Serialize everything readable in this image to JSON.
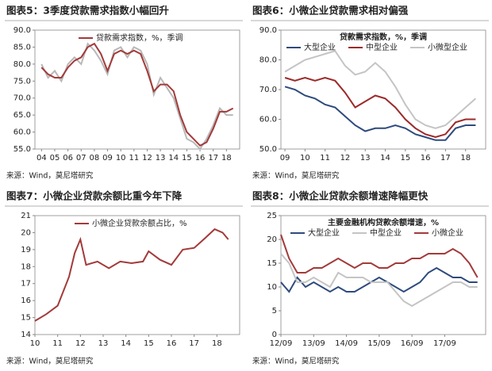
{
  "chart_data": [
    {
      "type": "line",
      "title": "图表5：3季度贷款需求指数小幅回升",
      "source": "来源：Wind，莫尼塔研究",
      "x": [
        2004,
        2004.5,
        2005,
        2005.5,
        2006,
        2006.5,
        2007,
        2007.5,
        2008,
        2008.5,
        2009,
        2009.5,
        2010,
        2010.5,
        2011,
        2011.5,
        2012,
        2012.5,
        2013,
        2013.5,
        2014,
        2014.5,
        2015,
        2015.5,
        2016,
        2016.5,
        2017,
        2017.5,
        2018,
        2018.5
      ],
      "series": [
        {
          "color": "#b8b8b8",
          "values": [
            80,
            76,
            78,
            75,
            80,
            82,
            80,
            86,
            84,
            81,
            77,
            84,
            85,
            82,
            85,
            84,
            80,
            71,
            76,
            73,
            70,
            64,
            58,
            57,
            55,
            58,
            62,
            67,
            65,
            65
          ]
        },
        {
          "name": "贷款需求指数，%，季调",
          "color": "#a33a3a",
          "values": [
            79,
            77,
            76,
            76,
            79,
            81,
            82,
            85,
            86,
            83,
            78,
            83,
            84,
            83,
            84,
            83,
            78,
            72,
            74,
            74,
            72,
            65,
            60,
            58,
            56,
            57,
            61,
            66,
            66,
            67
          ]
        }
      ],
      "xlim": [
        2003.5,
        2019
      ],
      "xticks": [
        {
          "value": 2004,
          "label": "04"
        },
        {
          "value": 2005,
          "label": "05"
        },
        {
          "value": 2006,
          "label": "06"
        },
        {
          "value": 2007,
          "label": "07"
        },
        {
          "value": 2008,
          "label": "08"
        },
        {
          "value": 2009,
          "label": "09"
        },
        {
          "value": 2010,
          "label": "10"
        },
        {
          "value": 2011,
          "label": "11"
        },
        {
          "value": 2012,
          "label": "12"
        },
        {
          "value": 2013,
          "label": "13"
        },
        {
          "value": 2014,
          "label": "14"
        },
        {
          "value": 2015,
          "label": "15"
        },
        {
          "value": 2016,
          "label": "16"
        },
        {
          "value": 2017,
          "label": "17"
        },
        {
          "value": 2018,
          "label": "18"
        }
      ],
      "ylim": [
        55,
        90
      ],
      "yticks": [
        {
          "value": 55,
          "label": "55.0"
        },
        {
          "value": 60,
          "label": "60.0"
        },
        {
          "value": 65,
          "label": "65.0"
        },
        {
          "value": 70,
          "label": "70.0"
        },
        {
          "value": 75,
          "label": "75.0"
        },
        {
          "value": 80,
          "label": "80.0"
        },
        {
          "value": 85,
          "label": "85.0"
        },
        {
          "value": 90,
          "label": "90.0"
        }
      ]
    },
    {
      "type": "line",
      "title": "图表6：小微企业贷款需求相对偏强",
      "subtitle": "贷款需求指数，%，季调",
      "source": "来源：Wind，莫尼塔研究",
      "x": [
        2009,
        2009.5,
        2010,
        2010.5,
        2011,
        2011.5,
        2012,
        2012.5,
        2013,
        2013.5,
        2014,
        2014.5,
        2015,
        2015.5,
        2016,
        2016.5,
        2017,
        2017.5,
        2018,
        2018.5
      ],
      "series": [
        {
          "name": "大型企业",
          "color": "#2e4a7d",
          "values": [
            71,
            70,
            68,
            67,
            65,
            64,
            61,
            58,
            56,
            57,
            57,
            58,
            57,
            55,
            54,
            53,
            53,
            57,
            58,
            58
          ]
        },
        {
          "name": "中型企业",
          "color": "#9c2a2a",
          "values": [
            74,
            73,
            74,
            73,
            74,
            73,
            69,
            64,
            66,
            68,
            67,
            64,
            60,
            57,
            55,
            54,
            55,
            59,
            60,
            60
          ]
        },
        {
          "name": "小微型企业",
          "color": "#c4c4c4",
          "values": [
            76,
            78,
            80,
            81,
            82,
            83,
            78,
            75,
            76,
            79,
            76,
            71,
            65,
            60,
            58,
            57,
            58,
            61,
            64,
            67
          ]
        }
      ],
      "xlim": [
        2008.8,
        2019
      ],
      "xticks": [
        {
          "value": 2009,
          "label": "09"
        },
        {
          "value": 2010,
          "label": "10"
        },
        {
          "value": 2011,
          "label": "11"
        },
        {
          "value": 2012,
          "label": "12"
        },
        {
          "value": 2013,
          "label": "13"
        },
        {
          "value": 2014,
          "label": "14"
        },
        {
          "value": 2015,
          "label": "15"
        },
        {
          "value": 2016,
          "label": "16"
        },
        {
          "value": 2017,
          "label": "17"
        },
        {
          "value": 2018,
          "label": "18"
        }
      ],
      "ylim": [
        50,
        90
      ],
      "yticks": [
        {
          "value": 50,
          "label": "50.0"
        },
        {
          "value": 60,
          "label": "60.0"
        },
        {
          "value": 70,
          "label": "70.0"
        },
        {
          "value": 80,
          "label": "80.0"
        },
        {
          "value": 90,
          "label": "90.0"
        }
      ]
    },
    {
      "type": "line",
      "title": "图表7：小微企业贷款余额比重今年下降",
      "source": "来源：Wind，莫尼塔研究",
      "x": [
        2010,
        2010.5,
        2011,
        2011.5,
        2011.75,
        2012,
        2012.25,
        2012.75,
        2013.25,
        2013.75,
        2014.25,
        2014.75,
        2015,
        2015.5,
        2016,
        2016.5,
        2017,
        2017.5,
        2017.9,
        2018.25,
        2018.5
      ],
      "series": [
        {
          "name": "小微企业贷款余额占比，%",
          "color": "#a33a3a",
          "values": [
            14.8,
            15.2,
            15.7,
            17.4,
            18.8,
            19.6,
            18.1,
            18.3,
            17.9,
            18.3,
            18.2,
            18.3,
            18.9,
            18.4,
            18.1,
            19.0,
            19.1,
            19.7,
            20.2,
            20.0,
            19.6
          ]
        }
      ],
      "xlim": [
        2010,
        2019
      ],
      "xticks": [
        {
          "value": 2010,
          "label": "10"
        },
        {
          "value": 2011,
          "label": "11"
        },
        {
          "value": 2012,
          "label": "12"
        },
        {
          "value": 2013,
          "label": "13"
        },
        {
          "value": 2014,
          "label": "14"
        },
        {
          "value": 2015,
          "label": "15"
        },
        {
          "value": 2016,
          "label": "16"
        },
        {
          "value": 2017,
          "label": "17"
        },
        {
          "value": 2018,
          "label": "18"
        }
      ],
      "ylim": [
        14,
        21
      ],
      "yticks": [
        14,
        15,
        16,
        17,
        18,
        19,
        20,
        21
      ]
    },
    {
      "type": "line",
      "title": "图表8：小微企业贷款余额增速降幅更快",
      "subtitle": "主要金融机构贷款余额增速，%",
      "source": "来源：Wind，莫尼塔研究",
      "x": [
        2012.75,
        2013,
        2013.25,
        2013.5,
        2013.75,
        2014,
        2014.25,
        2014.5,
        2014.75,
        2015,
        2015.25,
        2015.5,
        2015.75,
        2016,
        2016.25,
        2016.5,
        2016.75,
        2017,
        2017.25,
        2017.5,
        2017.75,
        2018,
        2018.25,
        2018.5,
        2018.75
      ],
      "series": [
        {
          "name": "大型企业",
          "color": "#2e4a7d",
          "values": [
            11,
            9,
            12,
            10,
            11,
            10,
            9,
            10,
            9,
            9,
            10,
            11,
            12,
            11,
            10,
            9,
            10,
            11,
            13,
            14,
            13,
            12,
            12,
            11,
            11
          ]
        },
        {
          "name": "中型企业",
          "color": "#c4c4c4",
          "values": [
            17,
            15,
            11,
            11,
            12,
            11,
            10,
            13,
            12,
            12,
            12,
            11,
            11,
            11,
            9,
            7,
            6,
            7,
            8,
            9,
            10,
            11,
            11,
            10,
            10
          ]
        },
        {
          "name": "小微企业",
          "color": "#a33a3a",
          "values": [
            21,
            16,
            13,
            13,
            14,
            14,
            15,
            16,
            15,
            14,
            15,
            15,
            14,
            14,
            15,
            15,
            16,
            16,
            17,
            17,
            17,
            18,
            17,
            15,
            12
          ]
        }
      ],
      "xlim": [
        2012.75,
        2019
      ],
      "xticks": [
        {
          "value": 2012.75,
          "label": "12/09"
        },
        {
          "value": 2013.75,
          "label": "13/09"
        },
        {
          "value": 2014.75,
          "label": "14/09"
        },
        {
          "value": 2015.75,
          "label": "15/09"
        },
        {
          "value": 2016.75,
          "label": "16/09"
        },
        {
          "value": 2017.75,
          "label": "17/09"
        }
      ],
      "ylim": [
        0,
        25
      ],
      "yticks": [
        0,
        5,
        10,
        15,
        20,
        25
      ]
    }
  ]
}
